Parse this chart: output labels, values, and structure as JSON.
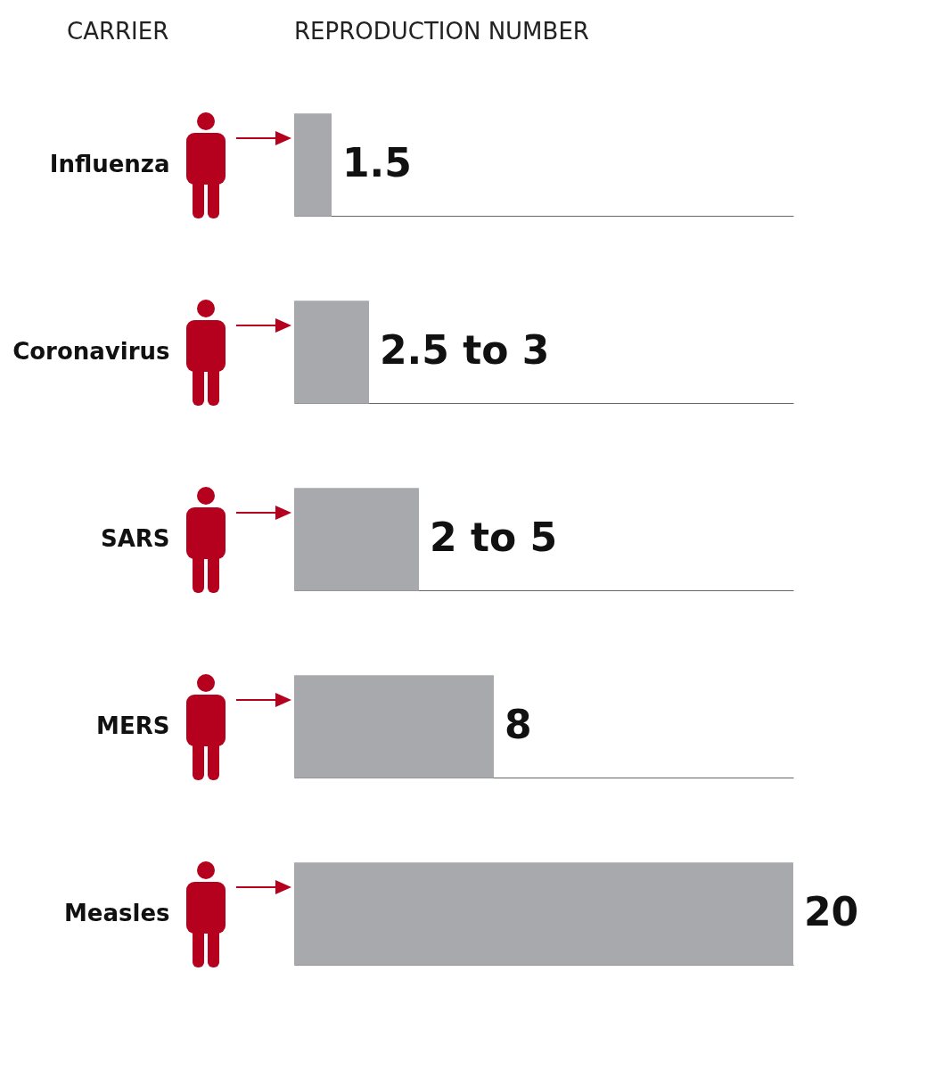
{
  "chart_data": {
    "type": "bar",
    "orientation": "horizontal",
    "categories": [
      "Influenza",
      "Coronavirus",
      "SARS",
      "MERS",
      "Measles"
    ],
    "values": [
      1.5,
      3,
      5,
      8,
      20
    ],
    "value_labels": [
      "1.5",
      "2.5 to 3",
      "2 to 5",
      "8",
      "20"
    ],
    "color": "#a7a9ac",
    "grid": "y",
    "annotations": [
      "CARRIER",
      "REPRODUCTION NUMBER"
    ]
  }
}
